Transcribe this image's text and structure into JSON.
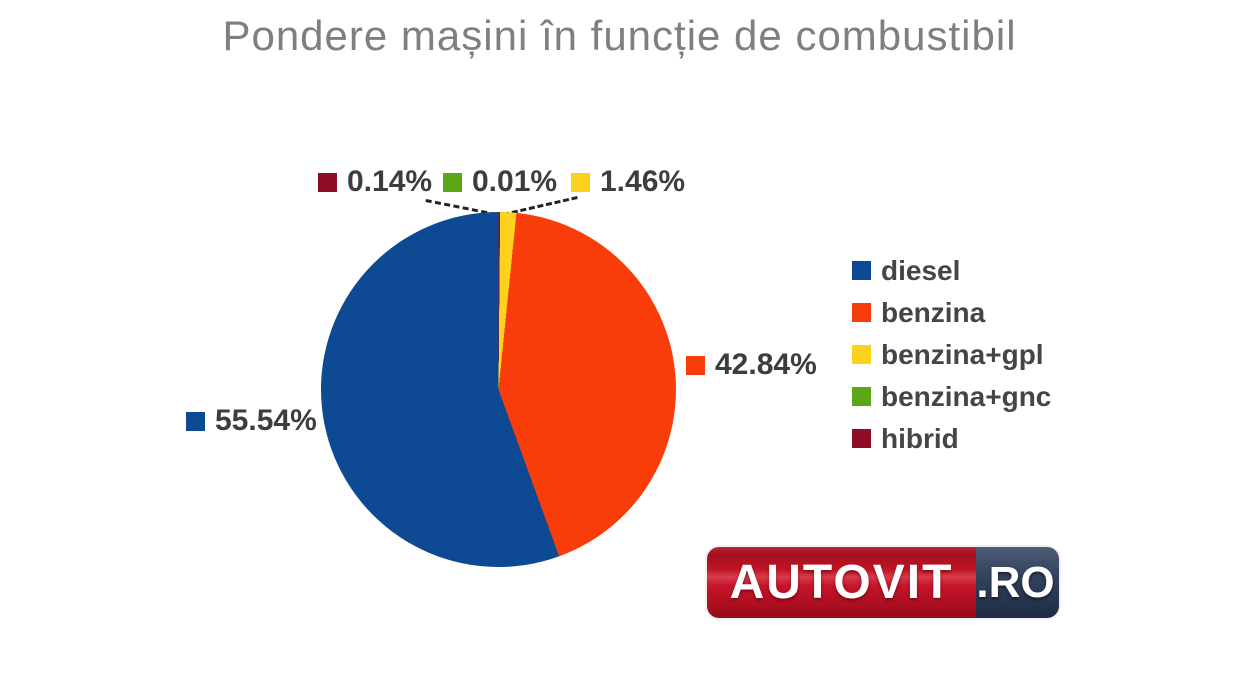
{
  "chart_data": {
    "type": "pie",
    "title": "Pondere mașini în funcție de combustibil",
    "unit": "%",
    "legend_position": "right",
    "data_labels": "percent, outside with leader lines",
    "slices": [
      {
        "label": "diesel",
        "value": 55.54,
        "pct_label": "55.54%",
        "color": "#0e4a94"
      },
      {
        "label": "benzina",
        "value": 42.84,
        "pct_label": "42.84%",
        "color": "#f93d0a"
      },
      {
        "label": "benzina+gpl",
        "value": 1.46,
        "pct_label": "1.46%",
        "color": "#fcd21c"
      },
      {
        "label": "benzina+gnc",
        "value": 0.01,
        "pct_label": "0.01%",
        "color": "#5aa717"
      },
      {
        "label": "hibrid",
        "value": 0.14,
        "pct_label": "0.14%",
        "color": "#8e0c26"
      }
    ],
    "draw_order_clockwise_from_top": [
      "hibrid",
      "benzina+gnc",
      "benzina+gpl",
      "benzina",
      "diesel"
    ]
  },
  "watermark": {
    "brand": "AUTOVIT",
    "tld": ".RO",
    "brand_red": "#c01425",
    "tld_navy": "#2c3a54"
  }
}
